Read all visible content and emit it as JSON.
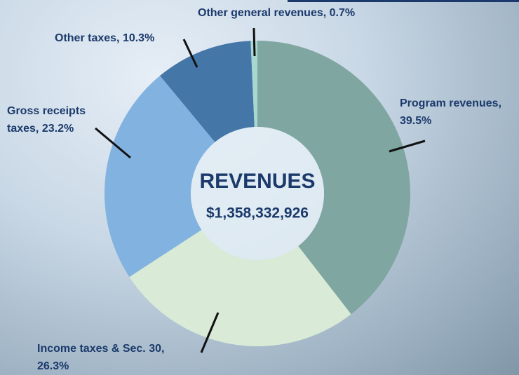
{
  "chart_data": {
    "type": "pie",
    "donut": true,
    "title": "REVENUES",
    "subtitle": "$1,358,332,926",
    "categories": [
      "Program revenues,",
      "Income taxes & Sec. 30,",
      "Gross receipts taxes,",
      "Other taxes,",
      "Other general revenues,"
    ],
    "values": [
      39.5,
      26.3,
      23.2,
      10.3,
      0.7
    ],
    "value_labels": [
      "39.5%",
      "26.3%",
      "23.2%",
      "10.3%",
      "0.7%"
    ],
    "colors": [
      "#7fa6a0",
      "#d9ebd6",
      "#82b3e0",
      "#4477a8",
      "#a8d8d0"
    ]
  }
}
